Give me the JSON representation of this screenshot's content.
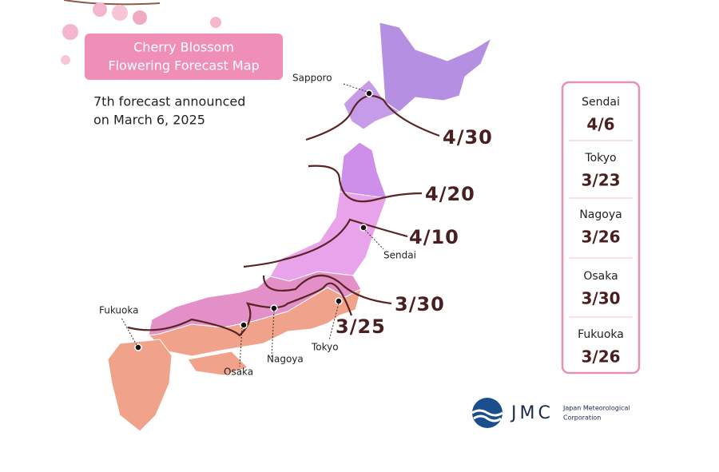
{
  "title": {
    "lines": [
      "Cherry Blossom",
      "Flowering Forecast Map"
    ]
  },
  "subtitle": {
    "lines": [
      "7th forecast announced",
      "on March 6, 2025"
    ]
  },
  "cities": [
    "Sapporo",
    "Sendai",
    "Tokyo",
    "Nagoya",
    "Osaka",
    "Fukuoka"
  ],
  "isolines": [
    "4/30",
    "4/20",
    "4/10",
    "3/30",
    "3/25"
  ],
  "forecast_table": {
    "rows": [
      [
        "Sendai",
        "4/6"
      ],
      [
        "Tokyo",
        "3/23"
      ],
      [
        "Nagoya",
        "3/26"
      ],
      [
        "Osaka",
        "3/30"
      ],
      [
        "Fukuoka",
        "3/26"
      ]
    ]
  },
  "logo": {
    "mark": "JMC",
    "name_lines": [
      "Japan Meteorological",
      "Corporation"
    ]
  }
}
